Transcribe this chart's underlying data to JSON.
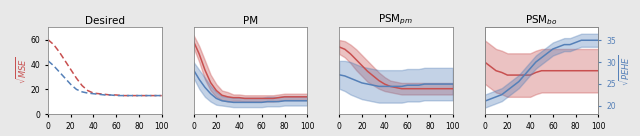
{
  "titles": [
    "Desired",
    "PM",
    "PSM$_{pm}$",
    "PSM$_{bo}$"
  ],
  "background_color": "#e8e8e8",
  "subplot_bg": "#ffffff",
  "red_color": "#c85050",
  "blue_color": "#5580b8",
  "red_fill_alpha": 0.35,
  "blue_fill_alpha": 0.35,
  "title_fontsize": 7.5,
  "ylabel_fontsize": 6,
  "tick_fontsize": 5.5,
  "xlim": [
    0,
    100
  ],
  "xticks": [
    0,
    20,
    40,
    60,
    80,
    100
  ],
  "x": [
    0,
    5,
    10,
    15,
    20,
    25,
    30,
    35,
    40,
    45,
    50,
    55,
    60,
    65,
    70,
    75,
    80,
    85,
    90,
    95,
    100
  ],
  "panel1": {
    "red_mean": [
      60,
      56,
      50,
      43,
      36,
      29,
      23,
      19,
      17,
      16.5,
      16,
      15.5,
      15.5,
      15,
      15,
      15,
      15,
      15,
      15,
      15,
      15
    ],
    "blue_mean": [
      43,
      39,
      34,
      29,
      24,
      20,
      18,
      17,
      16.5,
      16,
      15.5,
      15.5,
      15,
      15,
      15,
      15,
      15,
      15,
      15,
      15,
      15
    ],
    "ylim": [
      0,
      70
    ],
    "yticks": [
      0,
      20,
      40,
      60
    ],
    "ylabel": "$\\sqrt{MSE}$",
    "ylabel_color": "#c85050"
  },
  "panel2": {
    "red_mean": [
      46,
      38,
      28,
      20,
      15,
      12,
      11,
      10.5,
      10.5,
      10,
      10,
      10,
      10,
      10,
      10,
      10.5,
      11,
      11,
      11,
      11,
      11
    ],
    "red_std": [
      4,
      5,
      6,
      5,
      4,
      3,
      3,
      2,
      2,
      2,
      2,
      2,
      2,
      2,
      2,
      2,
      2,
      2,
      2,
      2,
      2
    ],
    "blue_mean": [
      28,
      22,
      17,
      13,
      10,
      8.5,
      8,
      7.5,
      7.5,
      7.5,
      7.5,
      7.5,
      7.5,
      8,
      8,
      8,
      8.5,
      8.5,
      8.5,
      8.5,
      8.5
    ],
    "blue_std": [
      5,
      6,
      6,
      5,
      4,
      3,
      3,
      3,
      3,
      3,
      3,
      3,
      3,
      3,
      3,
      3,
      3,
      3,
      3,
      3,
      3
    ],
    "ylim": [
      0,
      55
    ],
    "yticks": []
  },
  "panel3": {
    "red_mean": [
      58,
      56,
      52,
      47,
      42,
      37,
      33,
      29,
      26,
      24,
      23,
      22,
      22,
      22,
      22,
      22,
      22,
      22,
      22,
      22,
      22
    ],
    "red_std": [
      6,
      7,
      8,
      9,
      9,
      9,
      8,
      7,
      6,
      5,
      5,
      5,
      5,
      5,
      5,
      5,
      5,
      5,
      5,
      5,
      5
    ],
    "blue_mean": [
      34,
      33,
      31,
      29,
      27,
      26,
      25,
      24,
      24,
      24,
      24,
      24,
      25,
      25,
      25,
      26,
      26,
      26,
      26,
      26,
      26
    ],
    "blue_std": [
      12,
      13,
      14,
      14,
      14,
      14,
      14,
      14,
      14,
      14,
      14,
      14,
      14,
      14,
      14,
      14,
      14,
      14,
      14,
      14,
      14
    ],
    "ylim": [
      0,
      75
    ],
    "yticks": []
  },
  "panel4": {
    "red_mean": [
      33,
      32.5,
      32,
      31.8,
      31.5,
      31.5,
      31.5,
      31.5,
      31.5,
      31.8,
      32,
      32,
      32,
      32,
      32,
      32,
      32,
      32,
      32,
      32,
      32
    ],
    "red_std": [
      2.5,
      2.5,
      2.5,
      2.5,
      2.5,
      2.5,
      2.5,
      2.5,
      2.5,
      2.5,
      2.5,
      2.5,
      2.5,
      2.5,
      2.5,
      2.5,
      2.5,
      2.5,
      2.5,
      2.5,
      2.5
    ],
    "blue_mean": [
      21,
      21.5,
      22,
      22.5,
      23.5,
      24.5,
      25.5,
      27,
      28.5,
      30,
      31,
      32,
      33,
      33.5,
      34,
      34,
      34.5,
      35,
      35,
      35,
      35
    ],
    "blue_std": [
      1.5,
      1.5,
      1.5,
      1.5,
      1.5,
      1.5,
      1.5,
      1.5,
      1.5,
      1.5,
      1.5,
      1.5,
      1.5,
      1.5,
      1.5,
      1.5,
      1.5,
      1.5,
      1.5,
      1.5,
      1.5
    ],
    "ylim_red": [
      27,
      37
    ],
    "ylim_blue": [
      18,
      38
    ],
    "yticks_right": [
      20,
      25,
      30,
      35
    ],
    "ylabel_right": "$\\sqrt{PEHE}$",
    "ylabel_right_color": "#5580b8"
  }
}
